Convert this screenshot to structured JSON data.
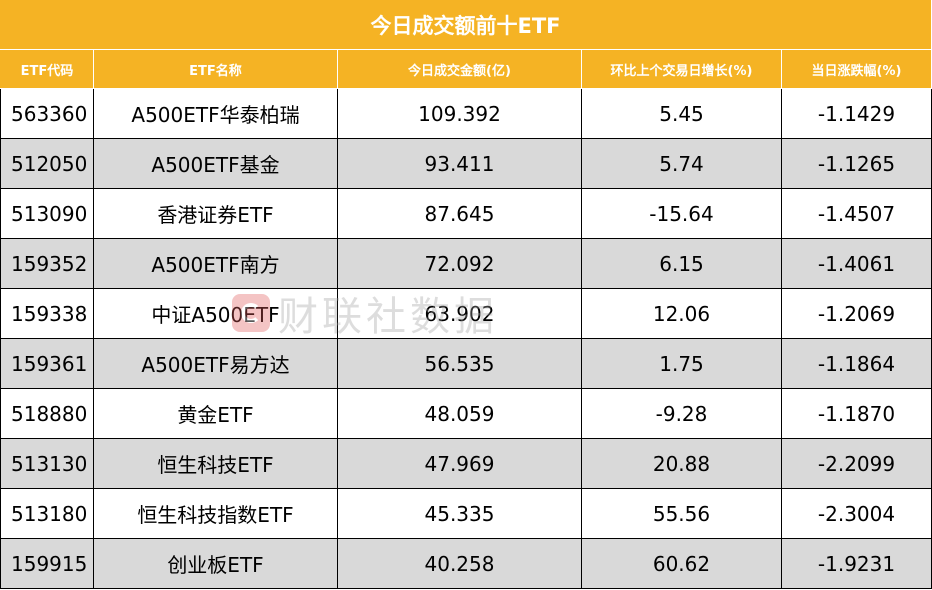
{
  "title": "今日成交额前十ETF",
  "headers": [
    "ETF代码",
    "ETF名称",
    "今日成交金额(亿)",
    "环比上个交易日增长(%)",
    "当日涨跌幅(%)"
  ],
  "rows": [
    [
      "563360",
      "A500ETF华泰柏瑞",
      "109.392",
      "5.45",
      "-1.1429"
    ],
    [
      "512050",
      "A500ETF基金",
      "93.411",
      "5.74",
      "-1.1265"
    ],
    [
      "513090",
      "香港证券ETF",
      "87.645",
      "-15.64",
      "-1.4507"
    ],
    [
      "159352",
      "A500ETF南方",
      "72.092",
      "6.15",
      "-1.4061"
    ],
    [
      "159338",
      "中证A500ETF",
      "63.902",
      "12.06",
      "-1.2069"
    ],
    [
      "159361",
      "A500ETF易方达",
      "56.535",
      "1.75",
      "-1.1864"
    ],
    [
      "518880",
      "黄金ETF",
      "48.059",
      "-9.28",
      "-1.1870"
    ],
    [
      "513130",
      "恒生科技ETF",
      "47.969",
      "20.88",
      "-2.2099"
    ],
    [
      "513180",
      "恒生科技指数ETF",
      "45.335",
      "55.56",
      "-2.3004"
    ],
    [
      "159915",
      "创业板ETF",
      "40.258",
      "60.62",
      "-1.9231"
    ]
  ],
  "watermark": "财联社数据",
  "colors": {
    "header_bg": "#F5B324",
    "header_text": "#FFFFFF",
    "stripe": "#D9D9D9"
  }
}
